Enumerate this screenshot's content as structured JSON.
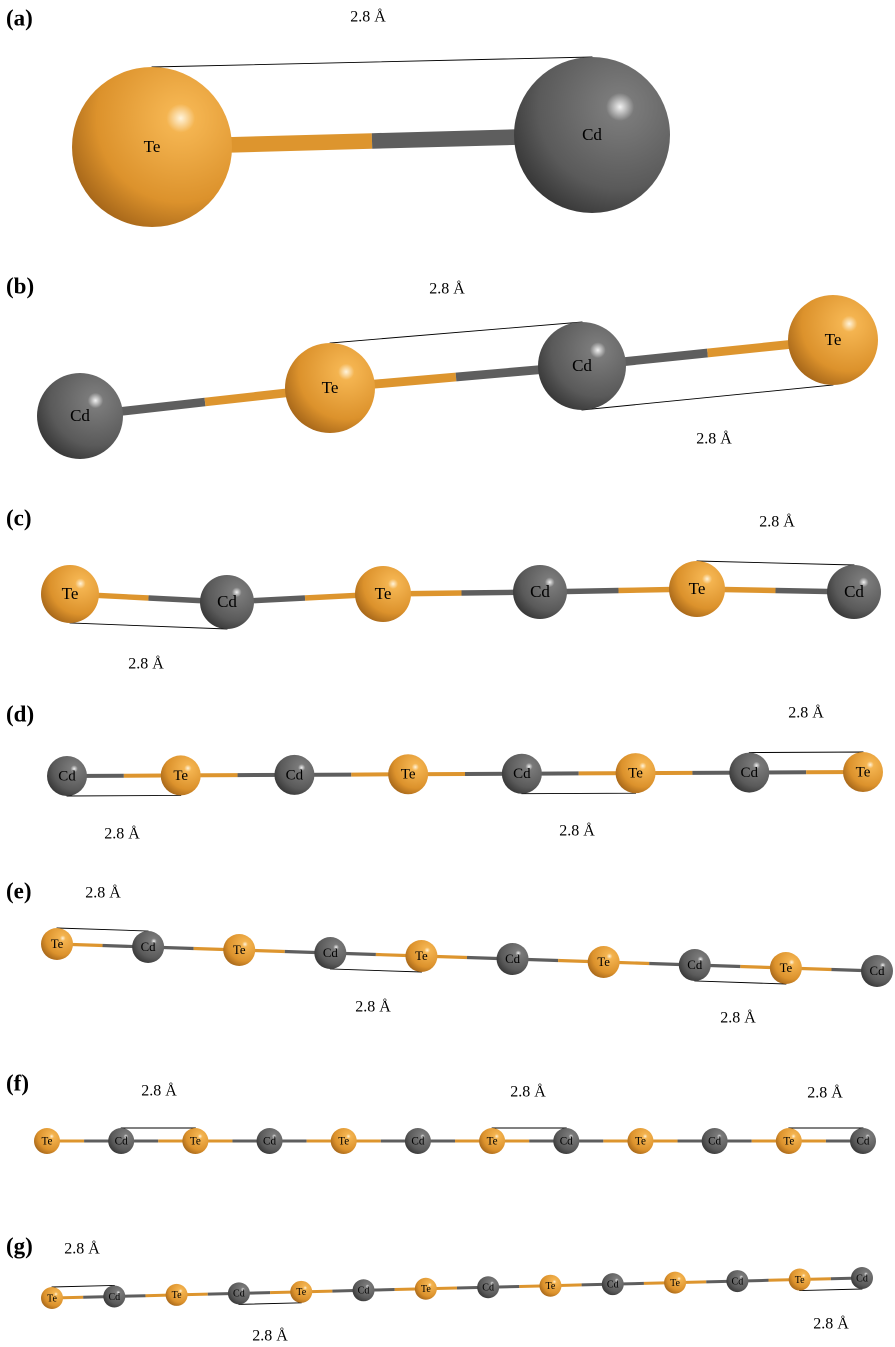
{
  "panels": [
    {
      "label": "(a)",
      "atoms": [
        "Te",
        "Cd"
      ],
      "distances": [
        "2.8 Å"
      ]
    },
    {
      "label": "(b)",
      "atoms": [
        "Cd",
        "Te",
        "Cd",
        "Te"
      ],
      "distances": [
        "2.8 Å",
        "2.8 Å"
      ]
    },
    {
      "label": "(c)",
      "atoms": [
        "Te",
        "Cd",
        "Te",
        "Cd",
        "Te",
        "Cd"
      ],
      "distances": [
        "2.8 Å",
        "2.8 Å"
      ]
    },
    {
      "label": "(d)",
      "atoms": [
        "Cd",
        "Te",
        "Cd",
        "Te",
        "Cd",
        "Te",
        "Cd",
        "Te"
      ],
      "distances": [
        "2.8 Å",
        "2.8 Å",
        "2.8 Å"
      ]
    },
    {
      "label": "(e)",
      "atoms": [
        "Te",
        "Cd",
        "Te",
        "Cd",
        "Te",
        "Cd",
        "Te",
        "Cd",
        "Te",
        "Cd"
      ],
      "distances": [
        "2.8 Å",
        "2.8 Å",
        "2.8 Å"
      ]
    },
    {
      "label": "(f)",
      "atoms": [
        "Te",
        "Cd",
        "Te",
        "Cd",
        "Te",
        "Cd",
        "Te",
        "Cd",
        "Te",
        "Cd",
        "Te",
        "Cd"
      ],
      "distances": [
        "2.8 Å",
        "2.8 Å",
        "2.8 Å"
      ]
    },
    {
      "label": "(g)",
      "atoms": [
        "Te",
        "Cd",
        "Te",
        "Cd",
        "Te",
        "Cd",
        "Te",
        "Cd",
        "Te",
        "Cd",
        "Te",
        "Cd",
        "Te",
        "Cd"
      ],
      "distances": [
        "2.8 Å",
        "2.8 Å",
        "2.8 Å"
      ]
    }
  ]
}
